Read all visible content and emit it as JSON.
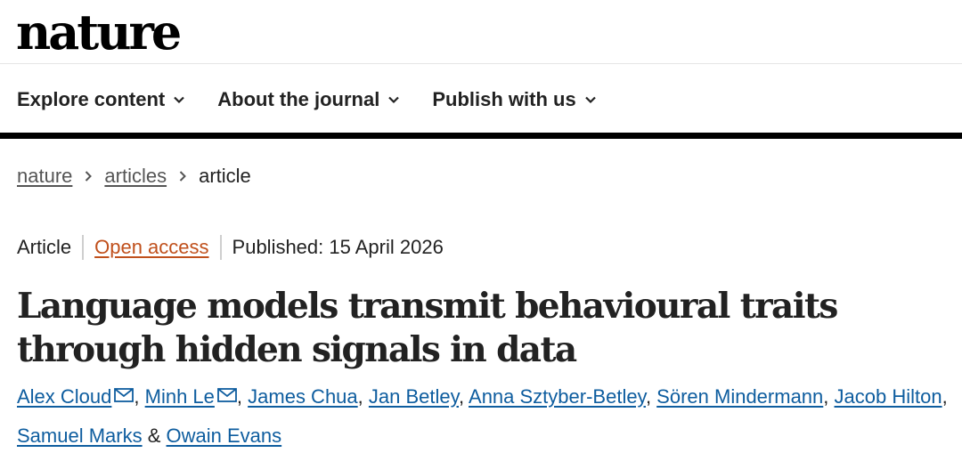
{
  "site": {
    "logo": "nature"
  },
  "nav": {
    "items": [
      {
        "label": "Explore content"
      },
      {
        "label": "About the journal"
      },
      {
        "label": "Publish with us"
      }
    ]
  },
  "breadcrumb": {
    "items": [
      "nature",
      "articles"
    ],
    "current": "article"
  },
  "meta": {
    "type": "Article",
    "access": "Open access",
    "published": "Published: 15 April 2026"
  },
  "title": "Language models transmit behavioural traits through hidden signals in data",
  "authors": {
    "names": [
      "Alex Cloud",
      "Minh Le",
      "James Chua",
      "Jan Betley",
      "Anna Sztyber-Betley",
      "Sören Mindermann",
      "Jacob Hilton",
      "Samuel Marks",
      "Owain Evans"
    ],
    "amp": "&"
  },
  "colors": {
    "link": "#0e5d9f",
    "open_access": "#c0501c",
    "rule": "#000000"
  }
}
